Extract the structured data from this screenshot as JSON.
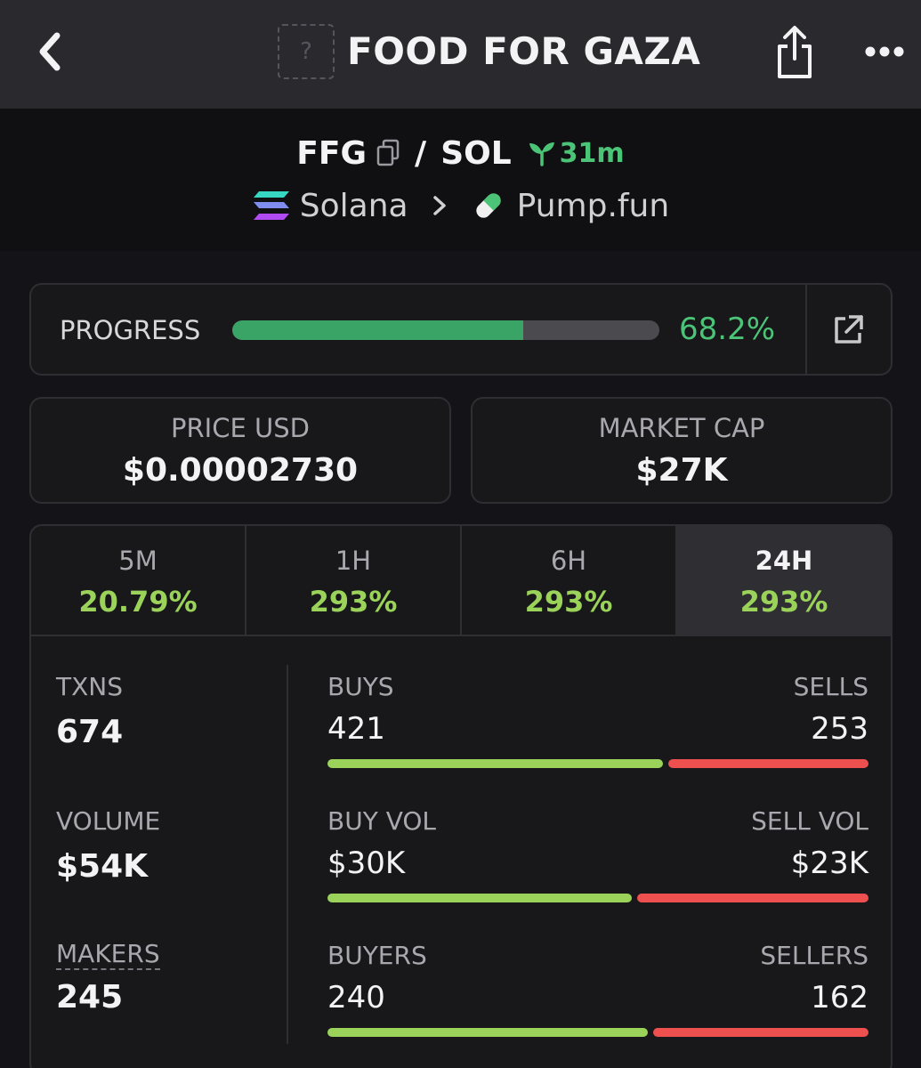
{
  "header": {
    "title": "FOOD FOR GAZA",
    "token_image_placeholder": "?",
    "icons": [
      "chevron-left-icon",
      "share-icon",
      "more-icon"
    ]
  },
  "pair": {
    "base": "FFG",
    "separator": "/",
    "quote": "SOL",
    "age": "31m",
    "chain": "Solana",
    "dex": "Pump.fun",
    "icons": [
      "copy-icon",
      "seedling-icon",
      "solana-logo-icon",
      "chevron-right-icon",
      "pill-icon"
    ]
  },
  "progress": {
    "label": "PROGRESS",
    "value_text": "68.2%",
    "value": 0.682,
    "colors": {
      "fill": "#3aa366",
      "text": "#4cc477"
    }
  },
  "stats": {
    "price_label": "PRICE USD",
    "price_value": "$0.00002730",
    "mcap_label": "MARKET CAP",
    "mcap_value": "$27K"
  },
  "timeframes": [
    {
      "name": "5M",
      "change": "20.79%"
    },
    {
      "name": "1H",
      "change": "293%"
    },
    {
      "name": "6H",
      "change": "293%"
    },
    {
      "name": "24H",
      "change": "293%",
      "active": true
    }
  ],
  "summary": {
    "txns_label": "TXNS",
    "txns_value": "674",
    "volume_label": "VOLUME",
    "volume_value": "$54K",
    "makers_label": "MAKERS",
    "makers_value": "245"
  },
  "metrics": [
    {
      "left_label": "BUYS",
      "right_label": "SELLS",
      "left_value": "421",
      "right_value": "253",
      "buy_share": 0.625
    },
    {
      "left_label": "BUY VOL",
      "right_label": "SELL VOL",
      "left_value": "$30K",
      "right_value": "$23K",
      "buy_share": 0.567
    },
    {
      "left_label": "BUYERS",
      "right_label": "SELLERS",
      "left_value": "240",
      "right_value": "162",
      "buy_share": 0.597
    }
  ],
  "colors": {
    "buy": "#9bd35a",
    "sell": "#ee4f4f",
    "positive": "#4cc477"
  }
}
